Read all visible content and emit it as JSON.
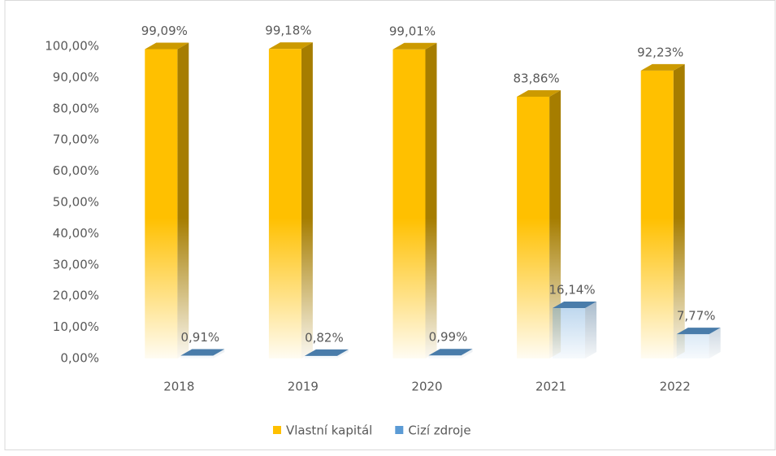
{
  "chart_data": {
    "type": "bar3d",
    "categories": [
      "2018",
      "2019",
      "2020",
      "2021",
      "2022"
    ],
    "series": [
      {
        "name": "Vlastní kapitál",
        "color": "#ffc000",
        "values": [
          99.09,
          99.18,
          99.01,
          83.86,
          92.23
        ],
        "value_labels": [
          "99,09%",
          "99,18%",
          "99,01%",
          "83,86%",
          "92,23%"
        ]
      },
      {
        "name": "Cizí zdroje",
        "color": "#5b9bd5",
        "values": [
          0.91,
          0.82,
          0.99,
          16.14,
          7.77
        ],
        "value_labels": [
          "0,91%",
          "0,82%",
          "0,99%",
          "16,14%",
          "7,77%"
        ]
      }
    ],
    "ylim": [
      0,
      100
    ],
    "yticks": [
      {
        "value": 0,
        "label": "0,00%"
      },
      {
        "value": 10,
        "label": "10,00%"
      },
      {
        "value": 20,
        "label": "20,00%"
      },
      {
        "value": 30,
        "label": "30,00%"
      },
      {
        "value": 40,
        "label": "40,00%"
      },
      {
        "value": 50,
        "label": "50,00%"
      },
      {
        "value": 60,
        "label": "60,00%"
      },
      {
        "value": 70,
        "label": "70,00%"
      },
      {
        "value": 80,
        "label": "80,00%"
      },
      {
        "value": 90,
        "label": "90,00%"
      },
      {
        "value": 100,
        "label": "100,00%"
      }
    ],
    "grid": false,
    "legend": "bottom"
  }
}
